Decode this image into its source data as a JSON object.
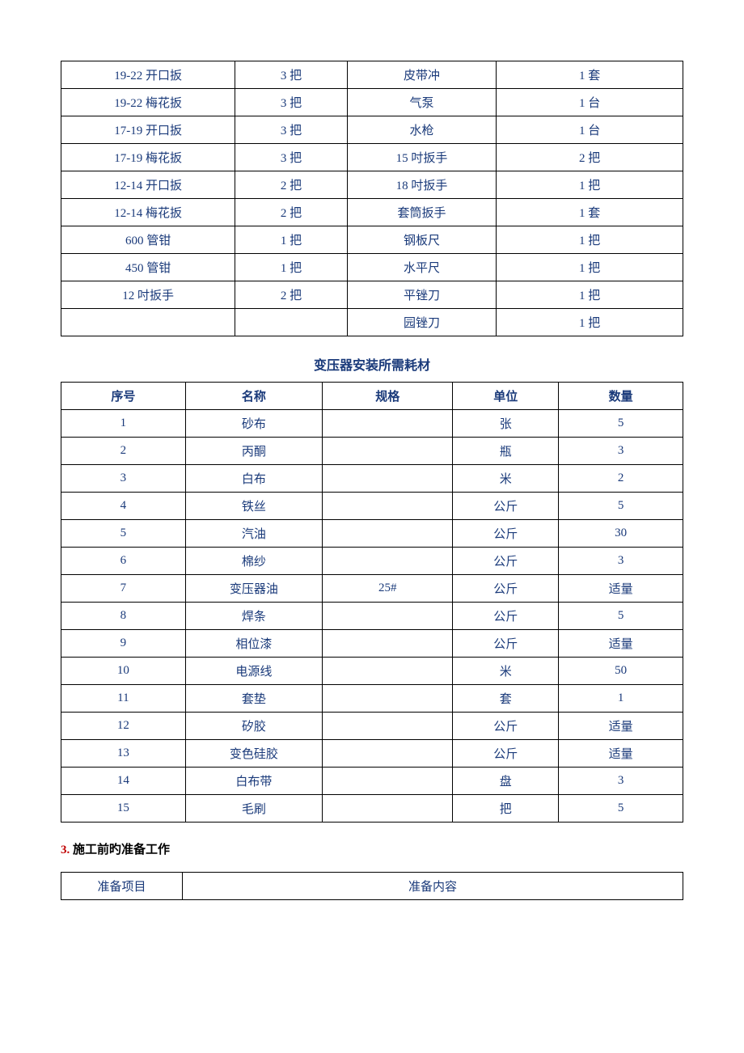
{
  "table1": {
    "columns": [
      {
        "width": "28%"
      },
      {
        "width": "18%"
      },
      {
        "width": "24%"
      },
      {
        "width": "30%"
      }
    ],
    "rows": [
      [
        "19-22 开口扳",
        "3 把",
        "皮带冲",
        "1 套"
      ],
      [
        "19-22 梅花扳",
        "3 把",
        "气泵",
        "1 台"
      ],
      [
        "17-19 开口扳",
        "3 把",
        "水枪",
        "1 台"
      ],
      [
        "17-19 梅花扳",
        "3 把",
        "15 吋扳手",
        "2 把"
      ],
      [
        "12-14 开口扳",
        "2 把",
        "18 吋扳手",
        "1 把"
      ],
      [
        "12-14 梅花扳",
        "2 把",
        "套筒扳手",
        "1 套"
      ],
      [
        "600 管钳",
        "1 把",
        "钢板尺",
        "1 把"
      ],
      [
        "450 管钳",
        "1 把",
        "水平尺",
        "1 把"
      ],
      [
        "12 吋扳手",
        "2 把",
        "平锉刀",
        "1 把"
      ],
      [
        "",
        "",
        "园锉刀",
        "1 把"
      ]
    ]
  },
  "table2": {
    "title": "变压器安装所需耗材",
    "headers": [
      "序号",
      "名称",
      "规格",
      "单位",
      "数量"
    ],
    "columns": [
      {
        "width": "20%"
      },
      {
        "width": "22%"
      },
      {
        "width": "21%"
      },
      {
        "width": "17%"
      },
      {
        "width": "20%"
      }
    ],
    "rows": [
      [
        "1",
        "砂布",
        "",
        "张",
        "5"
      ],
      [
        "2",
        "丙酮",
        "",
        "瓶",
        "3"
      ],
      [
        "3",
        "白布",
        "",
        "米",
        "2"
      ],
      [
        "4",
        "铁丝",
        "",
        "公斤",
        "5"
      ],
      [
        "5",
        "汽油",
        "",
        "公斤",
        "30"
      ],
      [
        "6",
        "棉纱",
        "",
        "公斤",
        "3"
      ],
      [
        "7",
        "变压器油",
        "25#",
        "公斤",
        "适量"
      ],
      [
        "8",
        "焊条",
        "",
        "公斤",
        "5"
      ],
      [
        "9",
        "相位漆",
        "",
        "公斤",
        "适量"
      ],
      [
        "10",
        "电源线",
        "",
        "米",
        "50"
      ],
      [
        "11",
        "套垫",
        "",
        "套",
        "1"
      ],
      [
        "12",
        "矽胶",
        "",
        "公斤",
        "适量"
      ],
      [
        "13",
        "变色硅胶",
        "",
        "公斤",
        "适量"
      ],
      [
        "14",
        "白布带",
        "",
        "盘",
        "3"
      ],
      [
        "15",
        "毛刷",
        "",
        "把",
        "5"
      ]
    ]
  },
  "section3": {
    "number": "3.",
    "title": "施工前旳准备工作"
  },
  "table3": {
    "headers": [
      "准备项目",
      "准备内容"
    ]
  },
  "colors": {
    "text": "#1a3a7a",
    "border": "#000000",
    "section_num": "#c00000",
    "section_txt": "#000000",
    "background": "#ffffff"
  },
  "typography": {
    "body_fontsize": 15,
    "title_fontsize": 16,
    "font_family": "SimSun"
  }
}
